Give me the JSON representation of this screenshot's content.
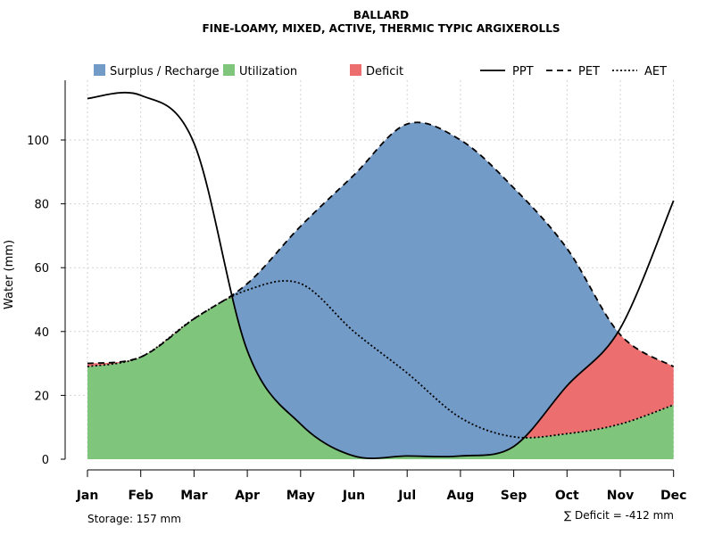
{
  "chart_data": {
    "type": "area",
    "title": "BALLARD",
    "subtitle": "FINE-LOAMY, MIXED, ACTIVE, THERMIC TYPIC ARGIXEROLLS",
    "ylabel": "Water (mm)",
    "xlabel": "",
    "ylim": [
      0,
      118
    ],
    "yticks": [
      0,
      20,
      40,
      60,
      80,
      100
    ],
    "categories": [
      "Jan",
      "Feb",
      "Mar",
      "Apr",
      "May",
      "Jun",
      "Jul",
      "Aug",
      "Sep",
      "Oct",
      "Nov",
      "Dec"
    ],
    "grid": true,
    "legend_position": "top",
    "series": [
      {
        "name": "PPT",
        "style": "solid",
        "values": [
          113,
          114,
          99,
          34,
          11,
          1,
          1,
          1,
          4,
          23,
          41,
          81
        ]
      },
      {
        "name": "PET",
        "style": "dashed",
        "values": [
          30,
          32,
          44,
          55,
          73,
          89,
          105,
          100,
          85,
          66,
          39,
          29
        ]
      },
      {
        "name": "AET",
        "style": "dotted",
        "values": [
          29,
          32,
          44,
          53,
          55,
          40,
          27,
          13,
          7,
          8,
          11,
          17
        ]
      }
    ],
    "areas": [
      {
        "name": "Surplus / Recharge",
        "color": "#729BC8"
      },
      {
        "name": "Utilization",
        "color": "#7FC57B"
      },
      {
        "name": "Deficit",
        "color": "#EC6E6E"
      }
    ],
    "annotations": {
      "storage": "Storage: 157 mm",
      "deficit": "∑ Deficit = -412 mm"
    }
  }
}
